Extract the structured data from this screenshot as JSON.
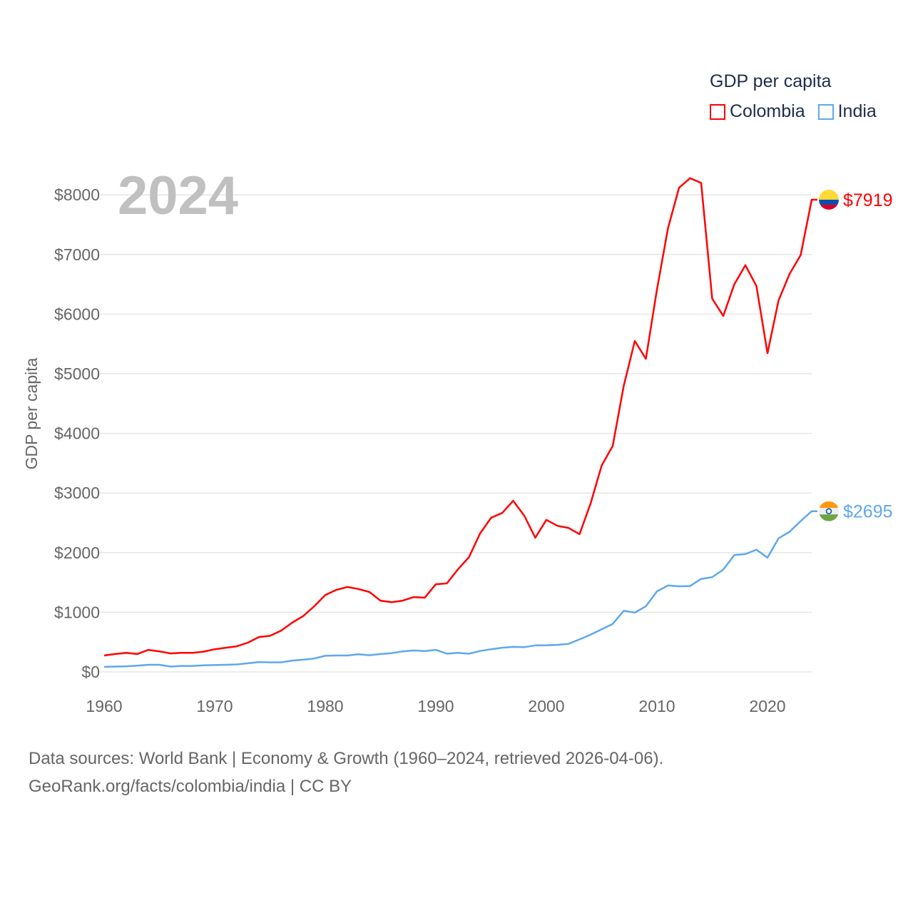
{
  "chart_data": {
    "type": "line",
    "title": "GDP per capita",
    "year_label": "2024",
    "xlabel": "",
    "ylabel": "GDP per capita",
    "xlim": [
      1960,
      2024
    ],
    "ylim": [
      0,
      8500
    ],
    "x_ticks": [
      1960,
      1970,
      1980,
      1990,
      2000,
      2010,
      2020
    ],
    "y_ticks": [
      0,
      1000,
      2000,
      3000,
      4000,
      5000,
      6000,
      7000,
      8000
    ],
    "y_tick_labels": [
      "$0",
      "$1000",
      "$2000",
      "$3000",
      "$4000",
      "$5000",
      "$6000",
      "$7000",
      "$8000"
    ],
    "grid": true,
    "legend_position": "top-right",
    "x": [
      1960,
      1961,
      1962,
      1963,
      1964,
      1965,
      1966,
      1967,
      1968,
      1969,
      1970,
      1971,
      1972,
      1973,
      1974,
      1975,
      1976,
      1977,
      1978,
      1979,
      1980,
      1981,
      1982,
      1983,
      1984,
      1985,
      1986,
      1987,
      1988,
      1989,
      1990,
      1991,
      1992,
      1993,
      1994,
      1995,
      1996,
      1997,
      1998,
      1999,
      2000,
      2001,
      2002,
      2003,
      2004,
      2005,
      2006,
      2007,
      2008,
      2009,
      2010,
      2011,
      2012,
      2013,
      2014,
      2015,
      2016,
      2017,
      2018,
      2019,
      2020,
      2021,
      2022,
      2023,
      2024
    ],
    "series": [
      {
        "name": "Colombia",
        "color": "#ff0000",
        "end_label": "$7919",
        "values": [
          275,
          300,
          320,
          300,
          370,
          345,
          310,
          320,
          320,
          340,
          380,
          405,
          430,
          490,
          585,
          605,
          690,
          825,
          935,
          1100,
          1290,
          1375,
          1425,
          1390,
          1340,
          1195,
          1170,
          1195,
          1255,
          1245,
          1470,
          1485,
          1720,
          1925,
          2320,
          2585,
          2665,
          2870,
          2620,
          2250,
          2550,
          2450,
          2415,
          2310,
          2825,
          3460,
          3790,
          4800,
          5550,
          5250,
          6410,
          7440,
          8120,
          8280,
          8200,
          6260,
          5970,
          6500,
          6820,
          6470,
          5345,
          6230,
          6675,
          6990,
          7919
        ]
      },
      {
        "name": "India",
        "color": "#5fa8ec",
        "end_label": "$2695",
        "values": [
          85,
          90,
          95,
          105,
          120,
          120,
          90,
          100,
          100,
          110,
          115,
          120,
          125,
          145,
          165,
          160,
          160,
          190,
          205,
          225,
          270,
          275,
          275,
          295,
          280,
          300,
          315,
          345,
          360,
          350,
          370,
          305,
          320,
          305,
          350,
          380,
          405,
          420,
          415,
          445,
          445,
          455,
          470,
          545,
          625,
          715,
          805,
          1025,
          995,
          1100,
          1350,
          1450,
          1435,
          1440,
          1560,
          1590,
          1715,
          1960,
          1975,
          2050,
          1915,
          2240,
          2350,
          2530,
          2695
        ]
      }
    ]
  },
  "footer": {
    "line1": "Data sources: World Bank | Economy & Growth (1960–2024, retrieved 2026-04-06).",
    "line2": "GeoRank.org/facts/colombia/india | CC BY"
  }
}
